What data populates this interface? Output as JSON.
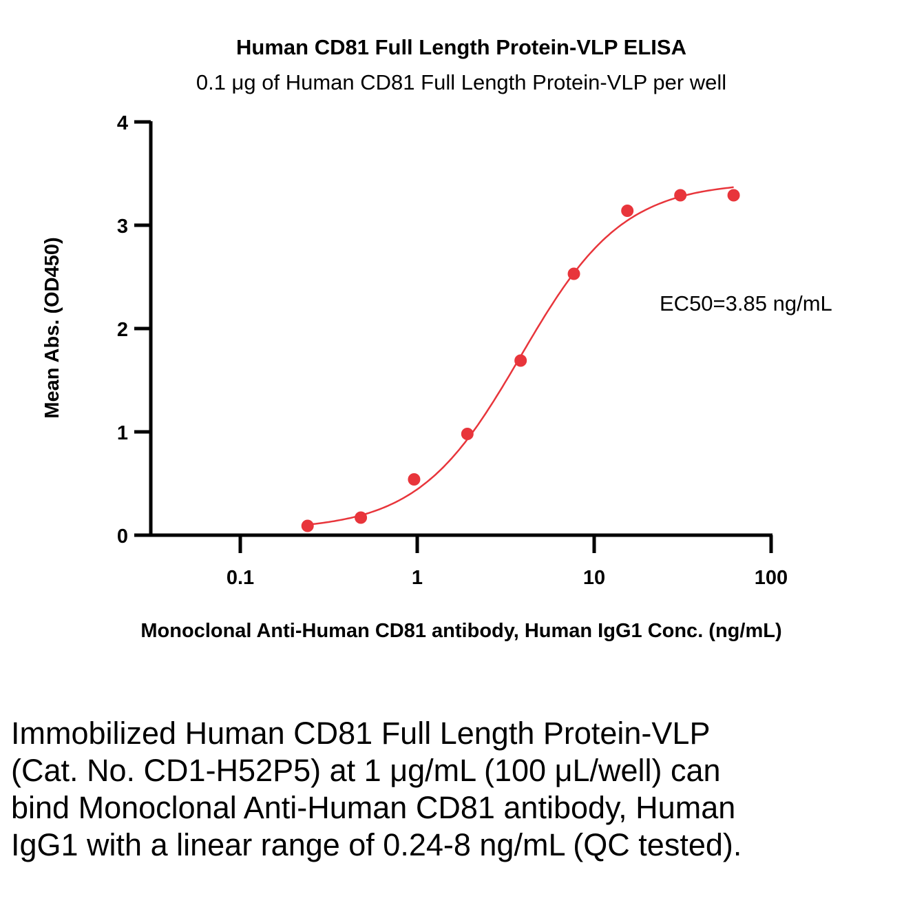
{
  "chart_data": {
    "type": "scatter",
    "title": "Human CD81 Full Length Protein-VLP  ELISA",
    "subtitle": "0.1 μg of Human CD81 Full Length Protein-VLP per well",
    "xlabel": "Monoclonal Anti-Human CD81 antibody, Human IgG1 Conc. (ng/mL)",
    "ylabel": "Mean Abs. (OD450)",
    "xscale": "log",
    "xlim": [
      0.03,
      100
    ],
    "ylim": [
      0,
      4
    ],
    "x_ticks": [
      0.1,
      1,
      10,
      100
    ],
    "x_tick_labels": [
      "0.1",
      "1",
      "10",
      "100"
    ],
    "y_ticks": [
      0,
      1,
      2,
      3,
      4
    ],
    "y_tick_labels": [
      "0",
      "1",
      "2",
      "3",
      "4"
    ],
    "grid": false,
    "series": [
      {
        "name": "Mean Abs.",
        "x": [
          0.24,
          0.48,
          0.96,
          1.92,
          3.84,
          7.68,
          15.4,
          30.7,
          61.4
        ],
        "y": [
          0.09,
          0.17,
          0.54,
          0.98,
          1.69,
          2.53,
          3.14,
          3.29,
          3.29
        ],
        "color": "#e8353b"
      }
    ],
    "fit": {
      "type": "4PL",
      "bottom": 0.05,
      "top": 3.42,
      "ec50": 3.85,
      "hill": 1.5,
      "color": "#e8353b"
    },
    "annotation": "EC50=3.85 ng/mL"
  },
  "caption": "Immobilized Human CD81 Full Length Protein-VLP (Cat. No. CD1-H52P5) at 1 μg/mL (100 μL/well) can bind Monoclonal Anti-Human CD81 antibody, Human IgG1 with a linear range of 0.24-8 ng/mL (QC tested)."
}
